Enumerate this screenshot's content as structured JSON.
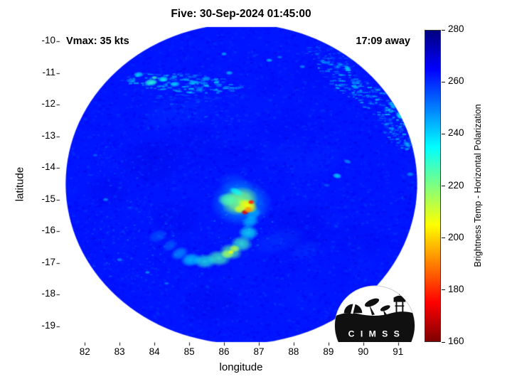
{
  "title": "Five: 30-Sep-2024 01:45:00",
  "annotations": {
    "vmax": "Vmax: 35 kts",
    "eta": "17:09 away"
  },
  "logo": {
    "text": "C I M S S"
  },
  "chart_data": {
    "type": "heatmap",
    "title": "Five: 30-Sep-2024 01:45:00",
    "xlabel": "longitude",
    "ylabel": "latitude",
    "xlim": [
      81.3,
      91.7
    ],
    "ylim": [
      -19.5,
      -9.55
    ],
    "x_ticks": [
      82,
      83,
      84,
      85,
      86,
      87,
      88,
      89,
      90,
      91
    ],
    "y_ticks": [
      -10,
      -11,
      -12,
      -13,
      -14,
      -15,
      -16,
      -17,
      -18,
      -19
    ],
    "grid": false,
    "units": "K",
    "colorbar": {
      "label": "Brightness Temp - Horizontal Polarization",
      "min": 160,
      "max": 280,
      "ticks": [
        160,
        180,
        200,
        220,
        240,
        260,
        280
      ],
      "position": "right",
      "stops": [
        {
          "v": 160,
          "c": "#7f0000"
        },
        {
          "v": 175,
          "c": "#ff0000"
        },
        {
          "v": 205,
          "c": "#ffff00"
        },
        {
          "v": 235,
          "c": "#00ffff"
        },
        {
          "v": 265,
          "c": "#0000ff"
        },
        {
          "v": 280,
          "c": "#00007f"
        }
      ]
    },
    "swath": {
      "center": [
        86.5,
        -14.5
      ],
      "radius_deg": 5.05,
      "base_temp": 262.5
    },
    "feature_format": [
      "lon",
      "lat",
      "rx_deg",
      "ry_deg",
      "rot_deg",
      "temp_K",
      "alpha"
    ],
    "shade_patches": [
      [
        83.9,
        -13.8,
        0.95,
        0.8,
        0,
        269,
        0.35
      ],
      [
        82.7,
        -14.7,
        0.7,
        0.6,
        0,
        268,
        0.3
      ],
      [
        85.2,
        -13.3,
        1.05,
        0.85,
        0,
        267,
        0.3
      ],
      [
        88.2,
        -15.9,
        1.1,
        0.9,
        0,
        268,
        0.3
      ],
      [
        87.9,
        -12.9,
        1.2,
        0.9,
        0,
        266,
        0.25
      ],
      [
        85.6,
        -18.3,
        0.95,
        0.7,
        0,
        268,
        0.3
      ],
      [
        84.6,
        -15.6,
        0.8,
        0.65,
        0,
        268,
        0.28
      ],
      [
        89.9,
        -16.3,
        0.9,
        0.7,
        0,
        267,
        0.25
      ],
      [
        86.5,
        -13.6,
        0.8,
        0.5,
        0,
        267,
        0.25
      ],
      [
        84.6,
        -12.3,
        1.2,
        0.5,
        -10,
        258,
        0.3
      ],
      [
        88.6,
        -13.8,
        0.9,
        0.5,
        -20,
        259,
        0.25
      ],
      [
        87.6,
        -16.3,
        0.8,
        0.4,
        -15,
        254,
        0.3
      ],
      [
        88.3,
        -16.6,
        0.5,
        0.3,
        -20,
        252,
        0.25
      ]
    ],
    "speckle_fields": [
      {
        "lon": 84.8,
        "lat": -11.3,
        "rx": 1.8,
        "ry": 0.3,
        "rot": -4,
        "count": 170,
        "tmin": 236,
        "tmax": 254,
        "w": 7,
        "h": 2,
        "alpha": 0.7
      },
      {
        "lon": 84.9,
        "lat": -11.85,
        "rx": 1.2,
        "ry": 0.2,
        "rot": -3,
        "count": 60,
        "tmin": 246,
        "tmax": 258,
        "w": 6,
        "h": 1.5,
        "alpha": 0.5
      },
      {
        "lon": 89.3,
        "lat": -11.1,
        "rx": 1.0,
        "ry": 0.35,
        "rot": -45,
        "count": 100,
        "tmin": 236,
        "tmax": 254,
        "w": 6,
        "h": 2,
        "alpha": 0.65
      },
      {
        "lon": 90.4,
        "lat": -12.0,
        "rx": 1.1,
        "ry": 0.4,
        "rot": -45,
        "count": 120,
        "tmin": 234,
        "tmax": 252,
        "w": 6,
        "h": 2,
        "alpha": 0.65
      },
      {
        "lon": 91.0,
        "lat": -12.95,
        "rx": 0.7,
        "ry": 0.3,
        "rot": -45,
        "count": 70,
        "tmin": 238,
        "tmax": 254,
        "w": 5,
        "h": 2,
        "alpha": 0.6
      },
      {
        "lon": 89.0,
        "lat": -10.5,
        "rx": 0.8,
        "ry": 0.25,
        "rot": -20,
        "count": 60,
        "tmin": 240,
        "tmax": 256,
        "w": 5,
        "h": 1.5,
        "alpha": 0.5
      },
      {
        "lon": 83.3,
        "lat": -16.3,
        "rx": 1.4,
        "ry": 1.3,
        "rot": 0,
        "count": 150,
        "tmin": 246,
        "tmax": 260,
        "w": 3,
        "h": 2,
        "alpha": 0.4
      },
      {
        "lon": 82.9,
        "lat": -13.9,
        "rx": 0.9,
        "ry": 0.8,
        "rot": 0,
        "count": 80,
        "tmin": 248,
        "tmax": 262,
        "w": 3,
        "h": 2,
        "alpha": 0.35
      },
      {
        "lon": 86.5,
        "lat": -14.5,
        "rx": 4.9,
        "ry": 4.9,
        "rot": 0,
        "count": 400,
        "tmin": 269,
        "tmax": 278,
        "w": 2,
        "h": 1.5,
        "alpha": 0.3
      },
      {
        "lon": 86.4,
        "lat": -15.8,
        "rx": 1.0,
        "ry": 0.8,
        "rot": 0,
        "count": 60,
        "tmin": 240,
        "tmax": 256,
        "w": 3,
        "h": 2,
        "alpha": 0.4
      },
      {
        "lon": 85.8,
        "lat": -12.4,
        "rx": 1.0,
        "ry": 0.25,
        "rot": -5,
        "count": 50,
        "tmin": 248,
        "tmax": 260,
        "w": 5,
        "h": 1.5,
        "alpha": 0.4
      }
    ],
    "features": [
      [
        83.9,
        -11.3,
        0.2,
        0.12,
        -5,
        230,
        0.9
      ],
      [
        84.25,
        -11.2,
        0.16,
        0.1,
        -5,
        234,
        0.85
      ],
      [
        83.55,
        -11.05,
        0.15,
        0.09,
        0,
        237,
        0.8
      ],
      [
        84.6,
        -11.35,
        0.14,
        0.09,
        0,
        238,
        0.8
      ],
      [
        85.1,
        -11.3,
        0.13,
        0.08,
        0,
        240,
        0.75
      ],
      [
        85.5,
        -11.18,
        0.13,
        0.08,
        0,
        242,
        0.7
      ],
      [
        86.15,
        -11.0,
        0.11,
        0.07,
        0,
        239,
        0.7
      ],
      [
        84.0,
        -11.15,
        0.1,
        0.06,
        0,
        228,
        0.85
      ],
      [
        83.3,
        -11.25,
        0.12,
        0.07,
        10,
        244,
        0.6
      ],
      [
        85.85,
        -11.4,
        0.1,
        0.06,
        0,
        246,
        0.6
      ],
      [
        86.0,
        -10.4,
        0.09,
        0.06,
        0,
        240,
        0.7
      ],
      [
        87.3,
        -10.6,
        0.1,
        0.06,
        0,
        238,
        0.7
      ],
      [
        87.6,
        -10.5,
        0.08,
        0.05,
        0,
        243,
        0.6
      ],
      [
        88.25,
        -10.8,
        0.09,
        0.06,
        0,
        241,
        0.6
      ],
      [
        90.7,
        -11.3,
        0.16,
        0.1,
        40,
        232,
        0.8
      ],
      [
        91.05,
        -12.35,
        0.15,
        0.1,
        40,
        234,
        0.8
      ],
      [
        90.85,
        -12.05,
        0.12,
        0.08,
        40,
        238,
        0.7
      ],
      [
        89.55,
        -10.85,
        0.13,
        0.08,
        40,
        236,
        0.7
      ],
      [
        88.85,
        -10.65,
        0.11,
        0.07,
        30,
        241,
        0.6
      ],
      [
        91.25,
        -13.25,
        0.13,
        0.09,
        40,
        239,
        0.65
      ],
      [
        90.2,
        -10.7,
        0.1,
        0.06,
        30,
        244,
        0.5
      ],
      [
        91.35,
        -14.2,
        0.11,
        0.07,
        0,
        241,
        0.6
      ],
      [
        89.25,
        -14.25,
        0.14,
        0.09,
        10,
        235,
        0.75
      ],
      [
        89.55,
        -13.8,
        0.12,
        0.07,
        15,
        241,
        0.6
      ],
      [
        88.95,
        -14.55,
        0.1,
        0.06,
        0,
        247,
        0.5
      ],
      [
        82.6,
        -15.0,
        0.09,
        0.06,
        0,
        240,
        0.6
      ],
      [
        83.0,
        -16.9,
        0.09,
        0.06,
        0,
        242,
        0.6
      ],
      [
        83.8,
        -17.3,
        0.08,
        0.05,
        0,
        238,
        0.6
      ],
      [
        84.35,
        -17.65,
        0.08,
        0.05,
        0,
        243,
        0.55
      ],
      [
        82.3,
        -13.6,
        0.08,
        0.05,
        0,
        245,
        0.5
      ],
      [
        86.75,
        -15.7,
        0.26,
        0.2,
        -20,
        240,
        0.7
      ],
      [
        86.7,
        -16.05,
        0.3,
        0.24,
        0,
        233,
        0.75
      ],
      [
        86.5,
        -16.4,
        0.32,
        0.26,
        0,
        228,
        0.8
      ],
      [
        86.2,
        -16.65,
        0.34,
        0.26,
        10,
        225,
        0.8
      ],
      [
        85.85,
        -16.85,
        0.36,
        0.26,
        5,
        227,
        0.8
      ],
      [
        85.45,
        -16.95,
        0.34,
        0.24,
        0,
        231,
        0.75
      ],
      [
        85.05,
        -16.9,
        0.3,
        0.22,
        -10,
        237,
        0.7
      ],
      [
        84.72,
        -16.7,
        0.27,
        0.2,
        -25,
        243,
        0.6
      ],
      [
        84.45,
        -16.45,
        0.24,
        0.18,
        -35,
        249,
        0.5
      ],
      [
        86.1,
        -16.72,
        0.2,
        0.15,
        0,
        216,
        0.85
      ],
      [
        86.3,
        -16.55,
        0.16,
        0.12,
        0,
        213,
        0.85
      ],
      [
        86.2,
        -16.66,
        0.09,
        0.07,
        0,
        206,
        0.9
      ],
      [
        86.85,
        -15.45,
        0.24,
        0.18,
        -30,
        242,
        0.6
      ],
      [
        84.1,
        -16.15,
        0.3,
        0.2,
        -20,
        250,
        0.45
      ],
      [
        86.35,
        -14.55,
        0.55,
        0.4,
        20,
        252,
        0.4
      ],
      [
        86.5,
        -15.1,
        0.9,
        0.75,
        0,
        240,
        0.5
      ],
      [
        86.45,
        -15.05,
        0.55,
        0.45,
        -15,
        220,
        0.95
      ],
      [
        86.1,
        -15.0,
        0.3,
        0.22,
        0,
        226,
        0.85
      ],
      [
        86.68,
        -15.2,
        0.3,
        0.22,
        20,
        205,
        0.95
      ],
      [
        86.45,
        -15.3,
        0.18,
        0.14,
        0,
        210,
        0.9
      ],
      [
        86.78,
        -15.08,
        0.1,
        0.08,
        0,
        178,
        0.95
      ],
      [
        86.6,
        -15.4,
        0.11,
        0.09,
        0,
        172,
        0.95
      ],
      [
        86.7,
        -15.32,
        0.14,
        0.11,
        0,
        192,
        0.9
      ],
      [
        86.35,
        -14.75,
        0.22,
        0.12,
        25,
        234,
        0.8
      ]
    ]
  }
}
